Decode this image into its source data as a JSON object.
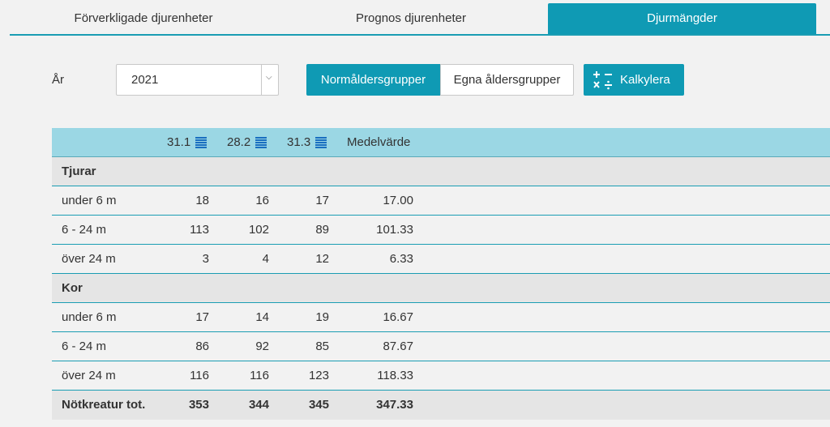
{
  "tabs": [
    {
      "label": "Förverkligade djurenheter"
    },
    {
      "label": "Prognos djurenheter"
    },
    {
      "label": "Djurmängder"
    }
  ],
  "form": {
    "year_label": "År",
    "year_value": "2021",
    "btn_normal": "Normåldersgrupper",
    "btn_own": "Egna åldersgrupper",
    "btn_calc": "Kalkylera"
  },
  "table": {
    "headers": [
      "31.1",
      "28.2",
      "31.3",
      "Medelvärde"
    ],
    "groups": [
      {
        "name": "Tjurar",
        "rows": [
          {
            "label": "under 6 m",
            "v": [
              "18",
              "16",
              "17",
              "17.00"
            ]
          },
          {
            "label": "6 - 24 m",
            "v": [
              "113",
              "102",
              "89",
              "101.33"
            ]
          },
          {
            "label": "över 24 m",
            "v": [
              "3",
              "4",
              "12",
              "6.33"
            ]
          }
        ]
      },
      {
        "name": "Kor",
        "rows": [
          {
            "label": "under 6 m",
            "v": [
              "17",
              "14",
              "19",
              "16.67"
            ]
          },
          {
            "label": "6 - 24 m",
            "v": [
              "86",
              "92",
              "85",
              "87.67"
            ]
          },
          {
            "label": "över 24 m",
            "v": [
              "116",
              "116",
              "123",
              "118.33"
            ]
          }
        ]
      }
    ],
    "total": {
      "label": "Nötkreatur tot.",
      "v": [
        "353",
        "344",
        "345",
        "347.33"
      ]
    }
  },
  "colors": {
    "accent": "#0f9ab4",
    "header_bg": "#9bd7e4",
    "group_bg": "#e5e5e5"
  }
}
